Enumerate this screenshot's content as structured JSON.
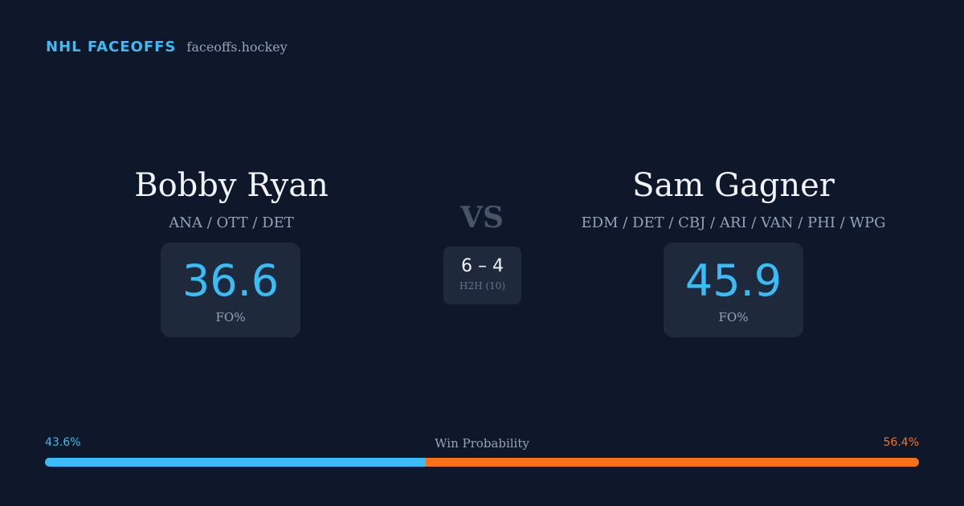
{
  "brand": {
    "name": "NHL FACEOFFS",
    "site": "faceoffs.hockey"
  },
  "player1": {
    "name": "Bobby Ryan",
    "teams": "ANA / OTT / DET",
    "fo_pct": "36.6",
    "fo_label": "FO%"
  },
  "player2": {
    "name": "Sam Gagner",
    "teams": "EDM / DET / CBJ / ARI / VAN / PHI / WPG",
    "fo_pct": "45.9",
    "fo_label": "FO%"
  },
  "matchup": {
    "vs": "VS",
    "h2h_score": "6 – 4",
    "h2h_label": "H2H (10)"
  },
  "win_probability": {
    "title": "Win Probability",
    "left_label": "43.6%",
    "right_label": "56.4%",
    "left_value": 43.6,
    "right_value": 56.4,
    "left_color": "#38bdf8",
    "right_color": "#f97316"
  },
  "colors": {
    "background": "#0f172a",
    "card": "#1e293b",
    "accent": "#38bdf8",
    "accent2": "#f97316"
  }
}
